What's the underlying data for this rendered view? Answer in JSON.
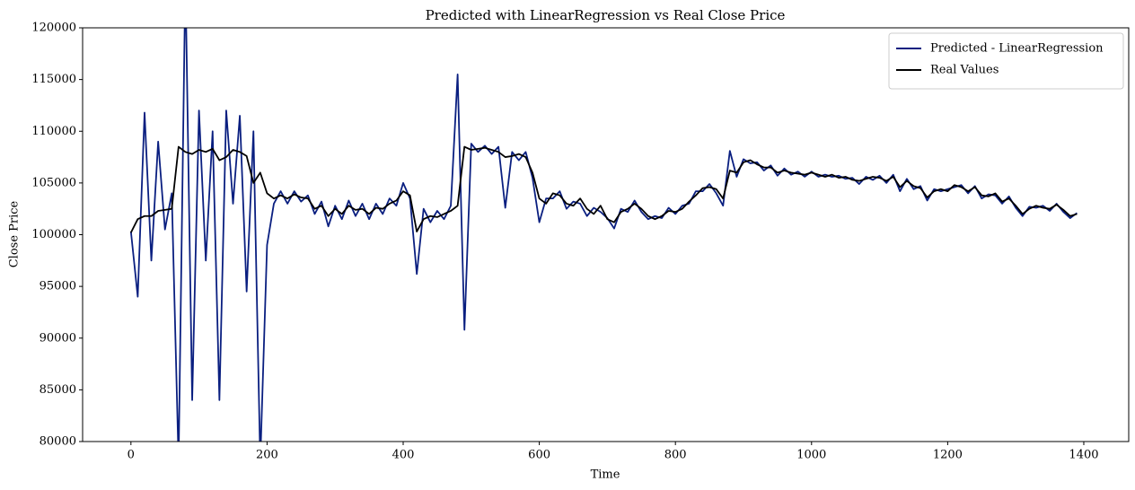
{
  "chart_data": {
    "type": "line",
    "title": "Predicted with LinearRegression vs Real Close Price",
    "x_label": "Time",
    "y_label": "Close Price",
    "x": [
      0,
      10,
      20,
      30,
      40,
      50,
      60,
      70,
      80,
      90,
      100,
      110,
      120,
      130,
      140,
      150,
      160,
      170,
      180,
      190,
      200,
      210,
      220,
      230,
      240,
      250,
      260,
      270,
      280,
      290,
      300,
      310,
      320,
      330,
      340,
      350,
      360,
      370,
      380,
      390,
      400,
      410,
      420,
      430,
      440,
      450,
      460,
      470,
      480,
      490,
      500,
      510,
      520,
      530,
      540,
      550,
      560,
      570,
      580,
      590,
      600,
      610,
      620,
      630,
      640,
      650,
      660,
      670,
      680,
      690,
      700,
      710,
      720,
      730,
      740,
      750,
      760,
      770,
      780,
      790,
      800,
      810,
      820,
      830,
      840,
      850,
      860,
      870,
      880,
      890,
      900,
      910,
      920,
      930,
      940,
      950,
      960,
      970,
      980,
      990,
      1000,
      1010,
      1020,
      1030,
      1040,
      1050,
      1060,
      1070,
      1080,
      1090,
      1100,
      1110,
      1120,
      1130,
      1140,
      1150,
      1160,
      1170,
      1180,
      1190,
      1200,
      1210,
      1220,
      1230,
      1240,
      1250,
      1260,
      1270,
      1280,
      1290,
      1300,
      1310,
      1320,
      1330,
      1340,
      1350,
      1360,
      1370,
      1380,
      1390
    ],
    "series": [
      {
        "name": "Predicted - LinearRegression",
        "color": "#0a1f80",
        "values": [
          100300,
          94000,
          111800,
          97500,
          109000,
          100500,
          104000,
          78000,
          125000,
          84000,
          112000,
          97500,
          110000,
          84000,
          112000,
          103000,
          111500,
          94500,
          110000,
          78000,
          99000,
          103000,
          104200,
          103000,
          104200,
          103200,
          103800,
          102000,
          103200,
          100800,
          102800,
          101500,
          103300,
          101800,
          103000,
          101500,
          103000,
          102000,
          103500,
          102800,
          105000,
          103500,
          96200,
          102500,
          101200,
          102300,
          101500,
          102800,
          115500,
          90800,
          108800,
          108000,
          108600,
          107800,
          108500,
          102600,
          108000,
          107200,
          108000,
          105500,
          101200,
          103500,
          103500,
          104200,
          102500,
          103200,
          103000,
          101800,
          102600,
          102200,
          101600,
          100600,
          102500,
          102200,
          103300,
          102200,
          101500,
          101800,
          101600,
          102600,
          102000,
          102800,
          103000,
          104200,
          104200,
          104900,
          104000,
          102800,
          108100,
          105600,
          107300,
          106900,
          107000,
          106200,
          106700,
          105700,
          106400,
          105800,
          106100,
          105600,
          106100,
          105600,
          105800,
          105600,
          105700,
          105400,
          105500,
          104900,
          105600,
          105300,
          105700,
          105000,
          105800,
          104200,
          105400,
          104400,
          104700,
          103300,
          104400,
          104200,
          104400,
          104600,
          104800,
          104000,
          104700,
          103500,
          103900,
          103800,
          103000,
          103700,
          102600,
          101800,
          102700,
          102600,
          102800,
          102300,
          103000,
          102200,
          101600,
          102100
        ]
      },
      {
        "name": "Real Values",
        "color": "#000000",
        "values": [
          100200,
          101500,
          101800,
          101800,
          102300,
          102400,
          102500,
          108500,
          108000,
          107800,
          108200,
          108000,
          108300,
          107200,
          107500,
          108200,
          108000,
          107600,
          105000,
          106000,
          104000,
          103500,
          103800,
          103500,
          103900,
          103600,
          103500,
          102500,
          102800,
          101800,
          102500,
          102000,
          102800,
          102400,
          102500,
          102000,
          102600,
          102500,
          103000,
          103300,
          104200,
          103800,
          100300,
          101500,
          101800,
          101700,
          102000,
          102300,
          102800,
          108500,
          108200,
          108300,
          108400,
          108200,
          108000,
          107500,
          107600,
          107800,
          107500,
          106000,
          103500,
          103000,
          104000,
          103800,
          103000,
          102800,
          103500,
          102500,
          102000,
          102800,
          101500,
          101200,
          102200,
          102500,
          103000,
          102500,
          101800,
          101500,
          101800,
          102300,
          102200,
          102500,
          103200,
          103800,
          104500,
          104600,
          104400,
          103500,
          106200,
          106000,
          107000,
          107200,
          106800,
          106500,
          106500,
          106000,
          106200,
          106000,
          105900,
          105800,
          106000,
          105800,
          105600,
          105800,
          105500,
          105600,
          105300,
          105200,
          105400,
          105600,
          105500,
          105200,
          105600,
          104600,
          105200,
          104700,
          104500,
          103600,
          104200,
          104400,
          104200,
          104800,
          104600,
          104200,
          104600,
          103800,
          103700,
          104000,
          103200,
          103500,
          102800,
          102000,
          102500,
          102800,
          102600,
          102500,
          102900,
          102400,
          101800,
          102000
        ]
      }
    ],
    "xlim": [
      -71,
      1466
    ],
    "ylim": [
      80000,
      120000
    ],
    "xticks": [
      0,
      200,
      400,
      600,
      800,
      1000,
      1200,
      1400
    ],
    "yticks": [
      80000,
      85000,
      90000,
      95000,
      100000,
      105000,
      110000,
      115000,
      120000
    ],
    "grid": false,
    "legend": "upper right"
  }
}
